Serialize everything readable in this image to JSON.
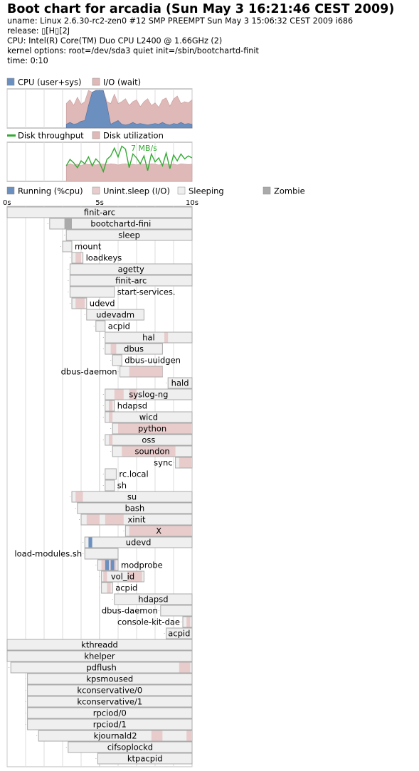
{
  "header": {
    "title": "Boot chart for arcadia (Sun May  3 16:21:46 CEST 2009)",
    "uname": "uname: Linux 2.6.30-rc2-zen0 #12 SMP PREEMPT Sun May 3 15:06:32 CEST 2009 i686",
    "release": "release: ▯[H▯[2J",
    "cpu": "CPU: Intel(R) Core(TM) Duo CPU      L2400  @ 1.66GHz (2)",
    "kernel": "kernel options: root=/dev/sda3 quiet init=/sbin/bootchartd-finit",
    "time": "time: 0:10"
  },
  "colors": {
    "cpu": "#6b8fbf",
    "io": "#dfb8b8",
    "throughput": "#33aa33",
    "running": "#6b8fbf",
    "unint_sleep": "#e8cccc",
    "sleeping": "#efefef",
    "zombie": "#aaaaaa",
    "bar_border": "#aaaaaa",
    "grid": "#dddddd"
  },
  "chart_data": [
    {
      "type": "area",
      "name": "cpu-io",
      "legend": [
        "CPU (user+sys)",
        "I/O (wait)"
      ],
      "x": [
        3.2,
        3.4,
        3.6,
        3.8,
        4.0,
        4.2,
        4.4,
        4.6,
        4.8,
        5.0,
        5.2,
        5.4,
        5.6,
        5.8,
        6.0,
        6.2,
        6.4,
        6.6,
        6.8,
        7.0,
        7.2,
        7.4,
        7.6,
        7.8,
        8.0,
        8.2,
        8.4,
        8.6,
        8.8,
        9.0,
        9.2,
        9.4,
        9.6,
        9.8,
        10.0
      ],
      "series": [
        {
          "name": "CPU (user+sys)",
          "values": [
            0.1,
            0.15,
            0.1,
            0.12,
            0.18,
            0.2,
            0.6,
            0.95,
            1.0,
            1.0,
            1.0,
            0.6,
            0.1,
            0.15,
            0.2,
            0.1,
            0.08,
            0.1,
            0.15,
            0.1,
            0.12,
            0.1,
            0.08,
            0.1,
            0.12,
            0.1,
            0.15,
            0.1,
            0.08,
            0.12,
            0.1,
            0.15,
            0.1,
            0.12,
            0.1
          ]
        },
        {
          "name": "I/O (wait)",
          "values": [
            0.55,
            0.6,
            0.5,
            0.7,
            0.45,
            0.5,
            0.4,
            0.0,
            0.0,
            0.0,
            0.0,
            0.1,
            0.55,
            0.75,
            0.45,
            0.6,
            0.7,
            0.5,
            0.55,
            0.65,
            0.45,
            0.6,
            0.7,
            0.5,
            0.55,
            0.45,
            0.6,
            0.7,
            0.5,
            0.65,
            0.75,
            0.5,
            0.6,
            0.55,
            0.65
          ]
        }
      ],
      "xlim": [
        0,
        10
      ],
      "ylim": [
        0,
        1
      ]
    },
    {
      "type": "line",
      "name": "disk",
      "legend": [
        "Disk throughput",
        "Disk utilization"
      ],
      "annotation": "7 MB/s",
      "x": [
        3.2,
        3.4,
        3.6,
        3.8,
        4.0,
        4.2,
        4.4,
        4.6,
        4.8,
        5.0,
        5.2,
        5.4,
        5.6,
        5.8,
        6.0,
        6.2,
        6.4,
        6.6,
        6.8,
        7.0,
        7.2,
        7.4,
        7.6,
        7.8,
        8.0,
        8.2,
        8.4,
        8.6,
        8.8,
        9.0,
        9.2,
        9.4,
        9.6,
        9.8,
        10.0
      ],
      "series": [
        {
          "name": "Disk throughput",
          "values": [
            3.2,
            4.5,
            3.8,
            2.8,
            4.2,
            3.6,
            5.0,
            3.2,
            4.6,
            3.8,
            2.0,
            4.5,
            5.2,
            6.8,
            5.0,
            7.2,
            6.6,
            2.8,
            5.6,
            4.8,
            3.6,
            5.2,
            2.2,
            5.6,
            4.0,
            4.8,
            3.2,
            5.8,
            2.6,
            5.4,
            4.2,
            5.6,
            4.6,
            5.2,
            4.8
          ]
        },
        {
          "name": "Disk utilization",
          "values": [
            0.4,
            0.45,
            0.42,
            0.44,
            0.4,
            0.45,
            0.43,
            0.44,
            0.42,
            0.45,
            0.44,
            0.43,
            0.45,
            0.44,
            0.42,
            0.44,
            0.45,
            0.43,
            0.44,
            0.42,
            0.45,
            0.44,
            0.43,
            0.45,
            0.44,
            0.42,
            0.44,
            0.45,
            0.43,
            0.44,
            0.42,
            0.45,
            0.44,
            0.43,
            0.44
          ]
        }
      ],
      "ymax": 8,
      "xlim": [
        0,
        10
      ]
    },
    {
      "type": "gantt",
      "name": "process-timeline",
      "legend": [
        "Running (%cpu)",
        "Unint.sleep (I/O)",
        "Sleeping",
        "Zombie"
      ],
      "xticks": [
        "0s",
        "5s",
        "10s"
      ],
      "xlim": [
        0,
        10
      ],
      "processes": [
        {
          "name": "finit-arc",
          "start": 0.0,
          "end": 10.0,
          "label_pos": "center"
        },
        {
          "name": "bootchartd-fini",
          "start": 2.3,
          "end": 10.0,
          "label_pos": "center",
          "states": [
            {
              "s": 3.1,
              "e": 3.5,
              "st": "zombie"
            }
          ]
        },
        {
          "name": "sleep",
          "start": 3.2,
          "end": 10.0,
          "label_pos": "center"
        },
        {
          "name": "mount",
          "start": 3.0,
          "end": 3.5,
          "label_pos": "right"
        },
        {
          "name": "loadkeys",
          "start": 3.5,
          "end": 4.1,
          "label_pos": "right",
          "states": [
            {
              "s": 3.7,
              "e": 4.0,
              "st": "io"
            }
          ]
        },
        {
          "name": "agetty",
          "start": 3.4,
          "end": 10.0,
          "label_pos": "center"
        },
        {
          "name": "finit-arc",
          "start": 3.4,
          "end": 10.0,
          "label_pos": "center"
        },
        {
          "name": "start-services.",
          "start": 3.4,
          "end": 5.8,
          "label_pos": "right"
        },
        {
          "name": "udevd",
          "start": 3.5,
          "end": 4.3,
          "label_pos": "right",
          "states": [
            {
              "s": 3.7,
              "e": 4.2,
              "st": "io"
            }
          ]
        },
        {
          "name": "udevadm",
          "start": 4.3,
          "end": 7.4,
          "label_pos": "center"
        },
        {
          "name": "acpid",
          "start": 4.8,
          "end": 5.3,
          "label_pos": "right"
        },
        {
          "name": "hal",
          "start": 5.3,
          "end": 10.0,
          "label_pos": "center",
          "states": [
            {
              "s": 8.5,
              "e": 8.7,
              "st": "io"
            }
          ]
        },
        {
          "name": "dbus",
          "start": 5.3,
          "end": 8.4,
          "label_pos": "center",
          "states": [
            {
              "s": 5.6,
              "e": 5.9,
              "st": "io"
            }
          ]
        },
        {
          "name": "dbus-uuidgen",
          "start": 5.7,
          "end": 6.2,
          "label_pos": "right"
        },
        {
          "name": "dbus-daemon",
          "start": 6.1,
          "end": 8.4,
          "label_pos": "left",
          "states": [
            {
              "s": 6.6,
              "e": 8.4,
              "st": "io"
            }
          ]
        },
        {
          "name": "hald",
          "start": 8.7,
          "end": 10.0,
          "label_pos": "center"
        },
        {
          "name": "syslog-ng",
          "start": 5.3,
          "end": 10.0,
          "label_pos": "center",
          "states": [
            {
              "s": 5.8,
              "e": 6.3,
              "st": "io"
            },
            {
              "s": 6.6,
              "e": 7.0,
              "st": "io"
            }
          ]
        },
        {
          "name": "hdapsd",
          "start": 5.3,
          "end": 5.8,
          "label_pos": "right",
          "states": [
            {
              "s": 5.5,
              "e": 5.7,
              "st": "io"
            }
          ]
        },
        {
          "name": "wicd",
          "start": 5.3,
          "end": 10.0,
          "label_pos": "center",
          "states": [
            {
              "s": 5.5,
              "e": 5.7,
              "st": "io"
            }
          ]
        },
        {
          "name": "python",
          "start": 5.7,
          "end": 10.0,
          "label_pos": "center",
          "states": [
            {
              "s": 6.0,
              "e": 10.0,
              "st": "io"
            }
          ]
        },
        {
          "name": "oss",
          "start": 5.3,
          "end": 10.0,
          "label_pos": "center",
          "states": [
            {
              "s": 5.5,
              "e": 5.7,
              "st": "io"
            }
          ]
        },
        {
          "name": "soundon",
          "start": 5.7,
          "end": 10.0,
          "label_pos": "center",
          "states": [
            {
              "s": 6.2,
              "e": 9.1,
              "st": "io"
            }
          ]
        },
        {
          "name": "sync",
          "start": 9.1,
          "end": 10.0,
          "label_pos": "left",
          "states": [
            {
              "s": 9.3,
              "e": 10.0,
              "st": "io"
            }
          ]
        },
        {
          "name": "rc.local",
          "start": 5.3,
          "end": 5.9,
          "label_pos": "right"
        },
        {
          "name": "sh",
          "start": 5.3,
          "end": 5.8,
          "label_pos": "right"
        },
        {
          "name": "su",
          "start": 3.5,
          "end": 10.0,
          "label_pos": "center",
          "states": [
            {
              "s": 3.7,
              "e": 4.1,
              "st": "io"
            }
          ]
        },
        {
          "name": "bash",
          "start": 3.8,
          "end": 10.0,
          "label_pos": "center"
        },
        {
          "name": "xinit",
          "start": 4.0,
          "end": 10.0,
          "label_pos": "center",
          "states": [
            {
              "s": 4.3,
              "e": 5.0,
              "st": "io"
            },
            {
              "s": 5.3,
              "e": 6.3,
              "st": "io"
            }
          ]
        },
        {
          "name": "X",
          "start": 6.4,
          "end": 10.0,
          "label_pos": "center",
          "states": [
            {
              "s": 6.6,
              "e": 10.0,
              "st": "io"
            }
          ]
        },
        {
          "name": "udevd",
          "start": 4.2,
          "end": 10.0,
          "label_pos": "center",
          "states": [
            {
              "s": 4.4,
              "e": 4.6,
              "st": "running"
            }
          ]
        },
        {
          "name": "load-modules.sh",
          "start": 4.2,
          "end": 6.0,
          "label_pos": "left"
        },
        {
          "name": "modprobe",
          "start": 4.9,
          "end": 6.0,
          "label_pos": "right",
          "states": [
            {
              "s": 5.1,
              "e": 5.3,
              "st": "io"
            },
            {
              "s": 5.3,
              "e": 5.5,
              "st": "running"
            },
            {
              "s": 5.5,
              "e": 5.6,
              "st": "io"
            },
            {
              "s": 5.6,
              "e": 5.8,
              "st": "running"
            },
            {
              "s": 5.8,
              "e": 5.9,
              "st": "io"
            }
          ]
        },
        {
          "name": "vol_id",
          "start": 5.1,
          "end": 7.4,
          "label_pos": "center",
          "states": [
            {
              "s": 5.2,
              "e": 5.4,
              "st": "io"
            },
            {
              "s": 6.5,
              "e": 7.3,
              "st": "io"
            }
          ]
        },
        {
          "name": "acpid",
          "start": 5.1,
          "end": 5.7,
          "label_pos": "right",
          "states": [
            {
              "s": 5.4,
              "e": 5.6,
              "st": "io"
            }
          ]
        },
        {
          "name": "hdapsd",
          "start": 5.8,
          "end": 10.0,
          "label_pos": "center"
        },
        {
          "name": "dbus-daemon",
          "start": 8.3,
          "end": 10.0,
          "label_pos": "left"
        },
        {
          "name": "console-kit-dae",
          "start": 9.5,
          "end": 10.0,
          "label_pos": "left",
          "states": [
            {
              "s": 9.7,
              "e": 9.9,
              "st": "io"
            }
          ]
        },
        {
          "name": "acpid",
          "start": 8.6,
          "end": 10.0,
          "label_pos": "center"
        },
        {
          "name": "kthreadd",
          "start": 0.0,
          "end": 10.0,
          "label_pos": "center"
        },
        {
          "name": "khelper",
          "start": 0.0,
          "end": 10.0,
          "label_pos": "center"
        },
        {
          "name": "pdflush",
          "start": 0.2,
          "end": 10.0,
          "label_pos": "center",
          "states": [
            {
              "s": 9.3,
              "e": 9.9,
              "st": "io"
            }
          ]
        },
        {
          "name": "kpsmoused",
          "start": 1.1,
          "end": 10.0,
          "label_pos": "center"
        },
        {
          "name": "kconservative/0",
          "start": 1.1,
          "end": 10.0,
          "label_pos": "center"
        },
        {
          "name": "kconservative/1",
          "start": 1.1,
          "end": 10.0,
          "label_pos": "center"
        },
        {
          "name": "rpciod/0",
          "start": 1.1,
          "end": 10.0,
          "label_pos": "center"
        },
        {
          "name": "rpciod/1",
          "start": 1.1,
          "end": 10.0,
          "label_pos": "center"
        },
        {
          "name": "kjournald2",
          "start": 1.7,
          "end": 10.0,
          "label_pos": "center",
          "states": [
            {
              "s": 7.8,
              "e": 8.4,
              "st": "io"
            },
            {
              "s": 9.7,
              "e": 10.0,
              "st": "io"
            }
          ]
        },
        {
          "name": "cifsoplockd",
          "start": 3.3,
          "end": 10.0,
          "label_pos": "center"
        },
        {
          "name": "ktpacpid",
          "start": 4.9,
          "end": 10.0,
          "label_pos": "center"
        }
      ]
    }
  ]
}
